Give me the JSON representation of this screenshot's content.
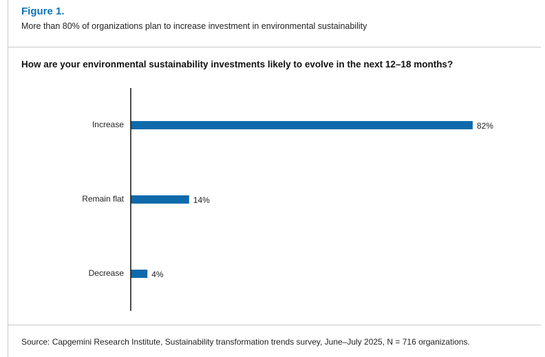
{
  "figure": {
    "label": "Figure 1.",
    "subtitle": "More than 80% of organizations plan to increase investment in environmental sustainability"
  },
  "question": "How are your environmental sustainability investments likely to evolve in the next 12–18 months?",
  "source": "Source: Capgemini Research Institute, Sustainability transformation trends survey, June–July 2025, N = 716 organizations.",
  "colors": {
    "accent": "#0f72b8",
    "bar": "#0f6aab",
    "axis": "#111111",
    "rule": "#c8c8c8"
  },
  "chart_data": {
    "type": "bar",
    "orientation": "horizontal",
    "categories": [
      "Increase",
      "Remain flat",
      "Decrease"
    ],
    "values": [
      82,
      14,
      4
    ],
    "value_labels": [
      "82%",
      "14%",
      "4%"
    ],
    "unit": "%",
    "xlim": [
      0,
      100
    ],
    "grid": false,
    "legend": "none"
  }
}
